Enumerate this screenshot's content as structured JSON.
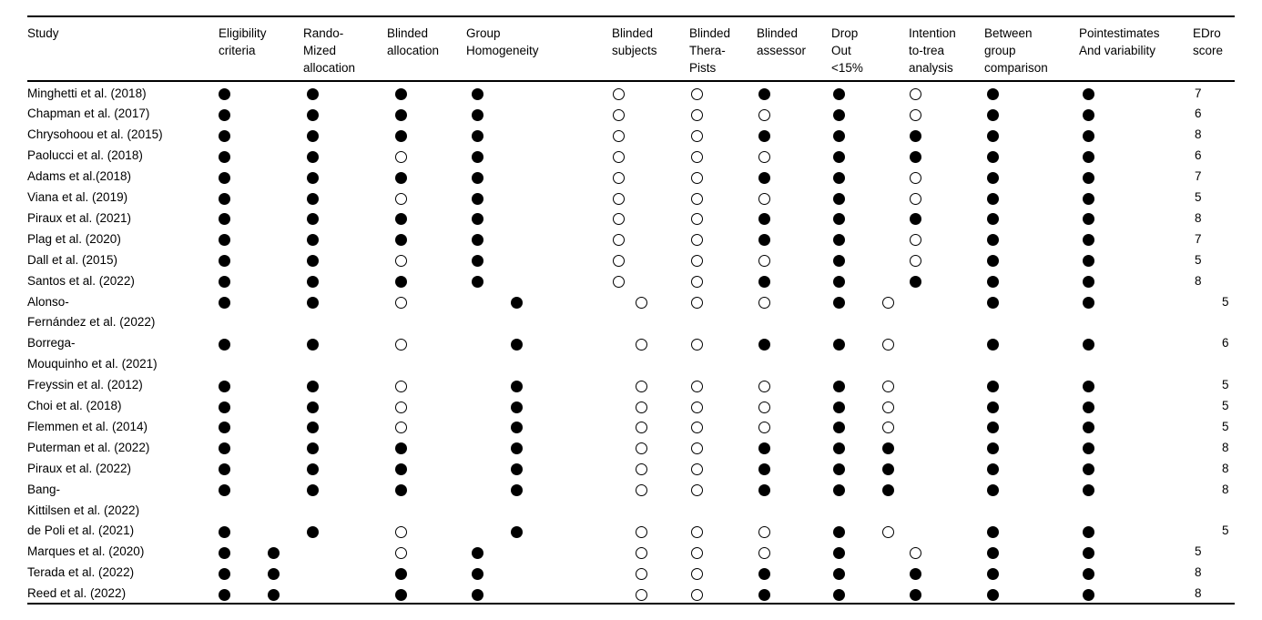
{
  "table": {
    "title": "Study quality scores table",
    "symbol_colors": {
      "filled": "#000000",
      "open_border": "#000000",
      "background": "#ffffff"
    },
    "columns": [
      {
        "id": "study",
        "lines": [
          "Study"
        ]
      },
      {
        "id": "eligibility",
        "lines": [
          "Eligibility",
          "criteria"
        ]
      },
      {
        "id": "randomized",
        "lines": [
          "Rando-",
          "Mized",
          "allocation"
        ]
      },
      {
        "id": "blinded_allocation",
        "lines": [
          "Blinded",
          "allocation"
        ]
      },
      {
        "id": "group_homogeneity",
        "lines": [
          "Group",
          "Homogeneity"
        ]
      },
      {
        "id": "blinded_subjects",
        "lines": [
          "Blinded",
          "subjects"
        ]
      },
      {
        "id": "blinded_therapists",
        "lines": [
          "Blinded",
          "Thera-",
          "Pists"
        ]
      },
      {
        "id": "blinded_assessor",
        "lines": [
          "Blinded",
          "assessor"
        ]
      },
      {
        "id": "drop_out",
        "lines": [
          "Drop",
          "Out",
          "<15%"
        ]
      },
      {
        "id": "intention",
        "lines": [
          "Intention",
          "to-trea",
          "analysis"
        ]
      },
      {
        "id": "between_group",
        "lines": [
          "Between",
          "group",
          "comparison"
        ]
      },
      {
        "id": "point_estimates",
        "lines": [
          "Pointestimates",
          "And variability"
        ]
      },
      {
        "id": "score",
        "lines": [
          "EDro",
          "score"
        ]
      }
    ],
    "value_column_ids": [
      "eligibility",
      "randomized",
      "blinded_allocation",
      "group_homogeneity",
      "blinded_subjects",
      "blinded_therapists",
      "blinded_assessor",
      "drop_out",
      "intention",
      "between_group",
      "point_estimates"
    ],
    "rows": [
      {
        "name_lines": [
          "Minghetti et al. (2018)"
        ],
        "align": "A",
        "values": [
          1,
          1,
          1,
          1,
          0,
          0,
          1,
          1,
          0,
          1,
          1
        ],
        "score": "7"
      },
      {
        "name_lines": [
          "Chapman et al. (2017)"
        ],
        "align": "A",
        "values": [
          1,
          1,
          1,
          1,
          0,
          0,
          0,
          1,
          0,
          1,
          1
        ],
        "score": "6"
      },
      {
        "name_lines": [
          "Chrysohoou et al. (2015)"
        ],
        "align": "A",
        "values": [
          1,
          1,
          1,
          1,
          0,
          0,
          1,
          1,
          1,
          1,
          1
        ],
        "score": "8"
      },
      {
        "name_lines": [
          "Paolucci et al. (2018)"
        ],
        "align": "A",
        "values": [
          1,
          1,
          0,
          1,
          0,
          0,
          0,
          1,
          1,
          1,
          1
        ],
        "score": "6"
      },
      {
        "name_lines": [
          "Adams et al.(2018)"
        ],
        "align": "A",
        "values": [
          1,
          1,
          1,
          1,
          0,
          0,
          1,
          1,
          0,
          1,
          1
        ],
        "score": "7"
      },
      {
        "name_lines": [
          "Viana et al. (2019)"
        ],
        "align": "A",
        "values": [
          1,
          1,
          0,
          1,
          0,
          0,
          0,
          1,
          0,
          1,
          1
        ],
        "score": "5"
      },
      {
        "name_lines": [
          "Piraux et al. (2021)"
        ],
        "align": "A",
        "values": [
          1,
          1,
          1,
          1,
          0,
          0,
          1,
          1,
          1,
          1,
          1
        ],
        "score": "8"
      },
      {
        "name_lines": [
          "Plag et al. (2020)"
        ],
        "align": "A",
        "values": [
          1,
          1,
          1,
          1,
          0,
          0,
          1,
          1,
          0,
          1,
          1
        ],
        "score": "7"
      },
      {
        "name_lines": [
          "Dall et al. (2015)"
        ],
        "align": "A",
        "values": [
          1,
          1,
          0,
          1,
          0,
          0,
          0,
          1,
          0,
          1,
          1
        ],
        "score": "5"
      },
      {
        "name_lines": [
          "Santos et al. (2022)"
        ],
        "align": "A",
        "values": [
          1,
          1,
          1,
          1,
          0,
          0,
          1,
          1,
          1,
          1,
          1
        ],
        "score": "8"
      },
      {
        "name_lines": [
          "Alonso-",
          "Fernández et al. (2022)"
        ],
        "align": "B",
        "values": [
          1,
          1,
          0,
          1,
          0,
          0,
          0,
          1,
          0,
          1,
          1
        ],
        "score": "5"
      },
      {
        "name_lines": [
          "Borrega-",
          "Mouquinho et al. (2021)"
        ],
        "align": "B",
        "values": [
          1,
          1,
          0,
          1,
          0,
          0,
          1,
          1,
          0,
          1,
          1
        ],
        "score": "6"
      },
      {
        "name_lines": [
          "Freyssin et al. (2012)"
        ],
        "align": "B",
        "values": [
          1,
          1,
          0,
          1,
          0,
          0,
          0,
          1,
          0,
          1,
          1
        ],
        "score": "5"
      },
      {
        "name_lines": [
          "Choi et al. (2018)"
        ],
        "align": "B",
        "values": [
          1,
          1,
          0,
          1,
          0,
          0,
          0,
          1,
          0,
          1,
          1
        ],
        "score": "5"
      },
      {
        "name_lines": [
          "Flemmen et al. (2014)"
        ],
        "align": "B",
        "values": [
          1,
          1,
          0,
          1,
          0,
          0,
          0,
          1,
          0,
          1,
          1
        ],
        "score": "5"
      },
      {
        "name_lines": [
          "Puterman et al. (2022)"
        ],
        "align": "B",
        "values": [
          1,
          1,
          1,
          1,
          0,
          0,
          1,
          1,
          1,
          1,
          1
        ],
        "score": "8"
      },
      {
        "name_lines": [
          "Piraux et al. (2022)"
        ],
        "align": "B",
        "values": [
          1,
          1,
          1,
          1,
          0,
          0,
          1,
          1,
          1,
          1,
          1
        ],
        "score": "8"
      },
      {
        "name_lines": [
          "Bang-",
          "Kittilsen et al. (2022)"
        ],
        "align": "B",
        "values": [
          1,
          1,
          1,
          1,
          0,
          0,
          1,
          1,
          1,
          1,
          1
        ],
        "score": "8"
      },
      {
        "name_lines": [
          "de Poli et al. (2021)"
        ],
        "align": "B",
        "values": [
          1,
          1,
          0,
          1,
          0,
          0,
          0,
          1,
          0,
          1,
          1
        ],
        "score": "5"
      },
      {
        "name_lines": [
          "Marques et al. (2020)"
        ],
        "align": "C",
        "values": [
          1,
          1,
          0,
          1,
          0,
          0,
          0,
          1,
          0,
          1,
          1
        ],
        "score": "5"
      },
      {
        "name_lines": [
          "Terada et al. (2022)"
        ],
        "align": "C",
        "values": [
          1,
          1,
          1,
          1,
          0,
          0,
          1,
          1,
          1,
          1,
          1
        ],
        "score": "8"
      },
      {
        "name_lines": [
          "Reed et al. (2022)"
        ],
        "align": "C",
        "values": [
          1,
          1,
          1,
          1,
          0,
          0,
          1,
          1,
          1,
          1,
          1
        ],
        "score": "8"
      }
    ]
  }
}
